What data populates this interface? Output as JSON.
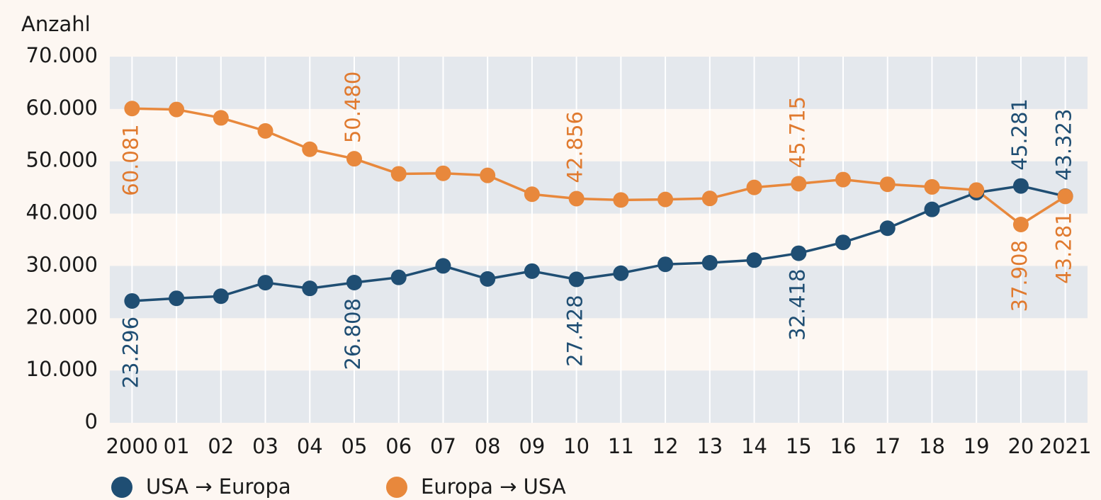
{
  "chart_data": {
    "type": "line",
    "y_label": "Anzahl",
    "categories": [
      "2000",
      "01",
      "02",
      "03",
      "04",
      "05",
      "06",
      "07",
      "08",
      "09",
      "10",
      "11",
      "12",
      "13",
      "14",
      "15",
      "16",
      "17",
      "18",
      "19",
      "20",
      "2021"
    ],
    "series": [
      {
        "name": "USA → Europa",
        "color": "#1f4e73",
        "values": [
          23296,
          23800,
          24200,
          26800,
          25700,
          26808,
          27800,
          30000,
          27500,
          29000,
          27428,
          28600,
          30300,
          30600,
          31100,
          32418,
          34500,
          37200,
          40800,
          44000,
          45281,
          43323
        ],
        "value_labels": [
          "23.296",
          null,
          null,
          null,
          null,
          "26.808",
          null,
          null,
          null,
          null,
          "27.428",
          null,
          null,
          null,
          null,
          "32.418",
          null,
          null,
          null,
          null,
          "45.281",
          "43.323"
        ]
      },
      {
        "name": "Europa → USA",
        "color": "#e8883c",
        "values": [
          60081,
          59900,
          58300,
          55800,
          52300,
          50480,
          47600,
          47700,
          47300,
          43700,
          42856,
          42600,
          42700,
          42900,
          45000,
          45715,
          46500,
          45600,
          45100,
          44500,
          37908,
          43281
        ],
        "value_labels": [
          "60.081",
          null,
          null,
          null,
          null,
          "50.480",
          null,
          null,
          null,
          null,
          "42.856",
          null,
          null,
          null,
          null,
          "45.715",
          null,
          null,
          null,
          null,
          "37.908",
          "43.281"
        ]
      }
    ],
    "ylim": [
      0,
      70000
    ],
    "yticks": [
      {
        "value": 0,
        "label": "0"
      },
      {
        "value": 10000,
        "label": "10.000"
      },
      {
        "value": 20000,
        "label": "20.000"
      },
      {
        "value": 30000,
        "label": "30.000"
      },
      {
        "value": 40000,
        "label": "40.000"
      },
      {
        "value": 50000,
        "label": "50.000"
      },
      {
        "value": 60000,
        "label": "60.000"
      },
      {
        "value": 70000,
        "label": "70.000"
      }
    ],
    "grid": true
  }
}
